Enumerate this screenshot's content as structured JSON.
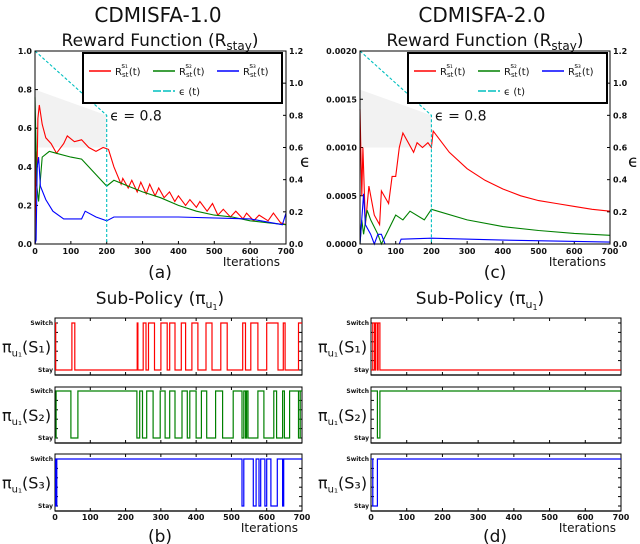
{
  "figure": {
    "left_title": "CDMISFA-1.0",
    "right_title": "CDMISFA-2.0",
    "reward_title_prefix": "Reward Function (R",
    "reward_title_sub": "stay",
    "reward_title_suffix": ")",
    "policy_title_prefix": "Sub-Policy (π",
    "policy_title_sub": "u",
    "policy_title_subsub": "1",
    "policy_title_suffix": ")",
    "captions": [
      "(a)",
      "(b)",
      "(c)",
      "(d)"
    ],
    "xlabel": "Iterations",
    "y2label": "ϵ",
    "legend": {
      "r": "R",
      "sub": "st",
      "sups": [
        "s₁",
        "s₂",
        "s₃"
      ],
      "t": "(t)",
      "eps": "ϵ (t)"
    },
    "policy_ylabels": [
      "π",
      "u₁",
      "(S₁)",
      "(S₂)",
      "(S₃)"
    ]
  },
  "chart_data": [
    {
      "type": "line",
      "panel": "a",
      "xlim": [
        0,
        700
      ],
      "ylim": [
        0,
        1.0
      ],
      "y2lim": [
        0,
        1.2
      ],
      "xticks": [
        "0",
        "100",
        "200",
        "300",
        "400",
        "500",
        "600",
        "700"
      ],
      "yticks": [
        "0.0",
        "0.2",
        "0.4",
        "0.6",
        "0.8",
        "1.0"
      ],
      "y2ticks": [
        "0.0",
        "0.2",
        "0.4",
        "0.6",
        "0.8",
        "1.0",
        "1.2"
      ],
      "annotation": "ϵ = 0.8",
      "colors": {
        "s1": "#ff0000",
        "s2": "#008000",
        "s3": "#0000ff",
        "eps": "#00bfbf"
      },
      "series": [
        {
          "name": "R_st^s1(t)",
          "key": "s1",
          "points": [
            [
              0,
              0
            ],
            [
              3,
              0.48
            ],
            [
              5,
              0.3
            ],
            [
              8,
              0.65
            ],
            [
              12,
              0.72
            ],
            [
              20,
              0.62
            ],
            [
              30,
              0.55
            ],
            [
              45,
              0.52
            ],
            [
              60,
              0.47
            ],
            [
              80,
              0.52
            ],
            [
              90,
              0.56
            ],
            [
              110,
              0.53
            ],
            [
              130,
              0.54
            ],
            [
              150,
              0.5
            ],
            [
              170,
              0.48
            ],
            [
              190,
              0.5
            ],
            [
              205,
              0.49
            ],
            [
              220,
              0.4
            ],
            [
              240,
              0.31
            ],
            [
              245,
              0.34
            ],
            [
              260,
              0.29
            ],
            [
              270,
              0.33
            ],
            [
              285,
              0.27
            ],
            [
              295,
              0.32
            ],
            [
              310,
              0.26
            ],
            [
              320,
              0.31
            ],
            [
              335,
              0.25
            ],
            [
              345,
              0.29
            ],
            [
              360,
              0.24
            ],
            [
              375,
              0.27
            ],
            [
              390,
              0.22
            ],
            [
              400,
              0.25
            ],
            [
              420,
              0.2
            ],
            [
              432,
              0.23
            ],
            [
              450,
              0.19
            ],
            [
              460,
              0.22
            ],
            [
              480,
              0.17
            ],
            [
              495,
              0.21
            ],
            [
              510,
              0.15
            ],
            [
              525,
              0.18
            ],
            [
              545,
              0.14
            ],
            [
              560,
              0.17
            ],
            [
              580,
              0.13
            ],
            [
              590,
              0.16
            ],
            [
              610,
              0.12
            ],
            [
              625,
              0.15
            ],
            [
              650,
              0.12
            ],
            [
              665,
              0.16
            ],
            [
              685,
              0.11
            ],
            [
              700,
              0.1
            ]
          ]
        },
        {
          "name": "R_st^s2(t)",
          "key": "s2",
          "points": [
            [
              0,
              0.76
            ],
            [
              5,
              0.3
            ],
            [
              10,
              0.22
            ],
            [
              20,
              0.45
            ],
            [
              40,
              0.48
            ],
            [
              60,
              0.47
            ],
            [
              100,
              0.45
            ],
            [
              130,
              0.44
            ],
            [
              160,
              0.38
            ],
            [
              200,
              0.3
            ],
            [
              220,
              0.33
            ],
            [
              260,
              0.3
            ],
            [
              300,
              0.27
            ],
            [
              350,
              0.24
            ],
            [
              400,
              0.2
            ],
            [
              450,
              0.17
            ],
            [
              500,
              0.15
            ],
            [
              550,
              0.14
            ],
            [
              600,
              0.12
            ],
            [
              650,
              0.11
            ],
            [
              700,
              0.1
            ]
          ]
        },
        {
          "name": "R_st^s3(t)",
          "key": "s3",
          "points": [
            [
              0,
              0
            ],
            [
              3,
              0.02
            ],
            [
              6,
              0.4
            ],
            [
              10,
              0.45
            ],
            [
              15,
              0.3
            ],
            [
              30,
              0.23
            ],
            [
              50,
              0.17
            ],
            [
              80,
              0.13
            ],
            [
              130,
              0.13
            ],
            [
              140,
              0.17
            ],
            [
              170,
              0.14
            ],
            [
              200,
              0.12
            ],
            [
              220,
              0.14
            ],
            [
              400,
              0.14
            ],
            [
              600,
              0.13
            ],
            [
              690,
              0.1
            ],
            [
              700,
              0.16
            ]
          ]
        },
        {
          "name": "ϵ(t)",
          "key": "eps",
          "axis": "y2",
          "points": [
            [
              0,
              1.2
            ],
            [
              200,
              0.8
            ],
            [
              200,
              0
            ]
          ]
        }
      ]
    },
    {
      "type": "line",
      "panel": "c",
      "xlim": [
        0,
        700
      ],
      "ylim": [
        0,
        0.002
      ],
      "y2lim": [
        0,
        1.2
      ],
      "xticks": [
        "0",
        "100",
        "200",
        "300",
        "400",
        "500",
        "600",
        "700"
      ],
      "yticks": [
        "0.0000",
        "0.0005",
        "0.0010",
        "0.0015",
        "0.0020"
      ],
      "y2ticks": [
        "0.0",
        "0.2",
        "0.4",
        "0.6",
        "0.8",
        "1.0",
        "1.2"
      ],
      "annotation": "ϵ = 0.8",
      "colors": {
        "s1": "#ff0000",
        "s2": "#008000",
        "s3": "#0000ff",
        "eps": "#00bfbf"
      },
      "series": [
        {
          "name": "R_st^s1(t)",
          "key": "s1",
          "points": [
            [
              0,
              0.0014
            ],
            [
              5,
              0.0005
            ],
            [
              8,
              0.001
            ],
            [
              15,
              0.0002
            ],
            [
              25,
              0.0006
            ],
            [
              40,
              0.0003
            ],
            [
              55,
              0.0002
            ],
            [
              60,
              0.00055
            ],
            [
              80,
              0.00042
            ],
            [
              90,
              0.0007
            ],
            [
              100,
              0.0007
            ],
            [
              110,
              0.001
            ],
            [
              120,
              0.00115
            ],
            [
              150,
              0.00095
            ],
            [
              160,
              0.00105
            ],
            [
              175,
              0.001
            ],
            [
              190,
              0.00105
            ],
            [
              200,
              0.001
            ],
            [
              205,
              0.00117
            ],
            [
              250,
              0.00095
            ],
            [
              300,
              0.00078
            ],
            [
              350,
              0.00066
            ],
            [
              400,
              0.00057
            ],
            [
              450,
              0.0005
            ],
            [
              500,
              0.00045
            ],
            [
              550,
              0.00042
            ],
            [
              600,
              0.00039
            ],
            [
              650,
              0.00036
            ],
            [
              700,
              0.00034
            ]
          ]
        },
        {
          "name": "R_st^s2(t)",
          "key": "s2",
          "points": [
            [
              0,
              0
            ],
            [
              5,
              0.00025
            ],
            [
              10,
              0.0001
            ],
            [
              20,
              0.00035
            ],
            [
              30,
              0.00025
            ],
            [
              50,
              0.0001
            ],
            [
              60,
              0
            ],
            [
              80,
              0.00015
            ],
            [
              100,
              0.0003
            ],
            [
              120,
              0.00025
            ],
            [
              140,
              0.00034
            ],
            [
              180,
              0.00025
            ],
            [
              200,
              0.00036
            ],
            [
              300,
              0.00025
            ],
            [
              400,
              0.00018
            ],
            [
              500,
              0.00014
            ],
            [
              600,
              0.00011
            ],
            [
              700,
              9e-05
            ]
          ]
        },
        {
          "name": "R_st^s3(t)",
          "key": "s3",
          "points": [
            [
              0,
              0
            ],
            [
              10,
              0.00052
            ],
            [
              15,
              0.0002
            ],
            [
              30,
              0.0001
            ],
            [
              40,
              0
            ],
            [
              50,
              0.0001
            ],
            [
              60,
              0.0001
            ],
            [
              70,
              0
            ],
            [
              110,
              0
            ],
            [
              115,
              5e-05
            ],
            [
              200,
              6e-05
            ],
            [
              400,
              4e-05
            ],
            [
              700,
              2e-05
            ]
          ]
        },
        {
          "name": "ϵ(t)",
          "key": "eps",
          "axis": "y2",
          "points": [
            [
              0,
              1.2
            ],
            [
              200,
              0.8
            ],
            [
              200,
              0
            ]
          ]
        }
      ]
    },
    {
      "type": "step",
      "panel": "b",
      "xlim": [
        0,
        700
      ],
      "xticks": [
        "0",
        "100",
        "200",
        "300",
        "400",
        "500",
        "600",
        "700"
      ],
      "levels": [
        "Stay",
        "Switch"
      ],
      "series": [
        {
          "name": "S1",
          "color": "#ff0000",
          "initial": 1,
          "toggles": [
            2,
            48,
            56,
            233,
            235,
            250,
            258,
            265,
            282,
            300,
            318,
            325,
            340,
            358,
            370,
            388,
            405,
            428,
            445,
            470,
            488,
            532,
            540,
            555,
            575,
            600,
            632,
            647,
            652,
            690
          ]
        },
        {
          "name": "S2",
          "color": "#008000",
          "initial": 0,
          "toggles": [
            3,
            45,
            65,
            232,
            240,
            248,
            260,
            278,
            298,
            312,
            325,
            340,
            360,
            375,
            382,
            400,
            415,
            430,
            455,
            475,
            505,
            530,
            535,
            540,
            543,
            547,
            575,
            592,
            620,
            628,
            645,
            650,
            665,
            690,
            695
          ]
        },
        {
          "name": "S3",
          "color": "#0000ff",
          "initial": 0,
          "toggles": [
            2,
            3,
            5,
            530,
            535,
            562,
            570,
            578,
            583,
            595,
            600,
            612,
            630,
            645,
            648
          ]
        }
      ]
    },
    {
      "type": "step",
      "panel": "d",
      "xlim": [
        0,
        700
      ],
      "xticks": [
        "0",
        "100",
        "200",
        "300",
        "400",
        "500",
        "600",
        "700"
      ],
      "levels": [
        "Stay",
        "Switch"
      ],
      "series": [
        {
          "name": "S1",
          "color": "#ff0000",
          "initial": 0,
          "toggles": [
            5,
            10,
            13,
            18,
            20,
            25
          ]
        },
        {
          "name": "S2",
          "color": "#008000",
          "initial": 1,
          "toggles": [
            18,
            25
          ]
        },
        {
          "name": "S3",
          "color": "#0000ff",
          "initial": 1,
          "toggles": [
            5,
            18
          ]
        }
      ]
    }
  ]
}
